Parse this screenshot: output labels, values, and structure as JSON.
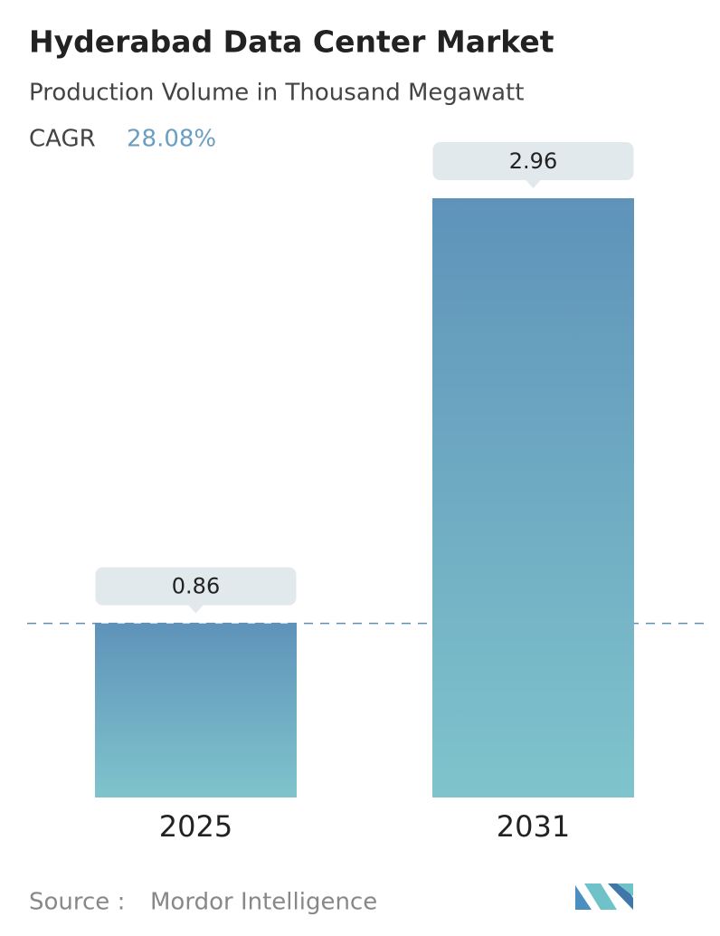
{
  "chart_data": {
    "type": "bar",
    "title": "Hyderabad Data Center Market",
    "subtitle": "Production Volume in Thousand Megawatt",
    "cagr_label": "CAGR",
    "cagr_value": "28.08%",
    "categories": [
      "2025",
      "2031"
    ],
    "values": [
      0.86,
      2.96
    ],
    "color_top": "#5f93ba",
    "color_bottom": "#7fc4cc",
    "source_label": "Source :",
    "source": "Mordor Intelligence"
  }
}
